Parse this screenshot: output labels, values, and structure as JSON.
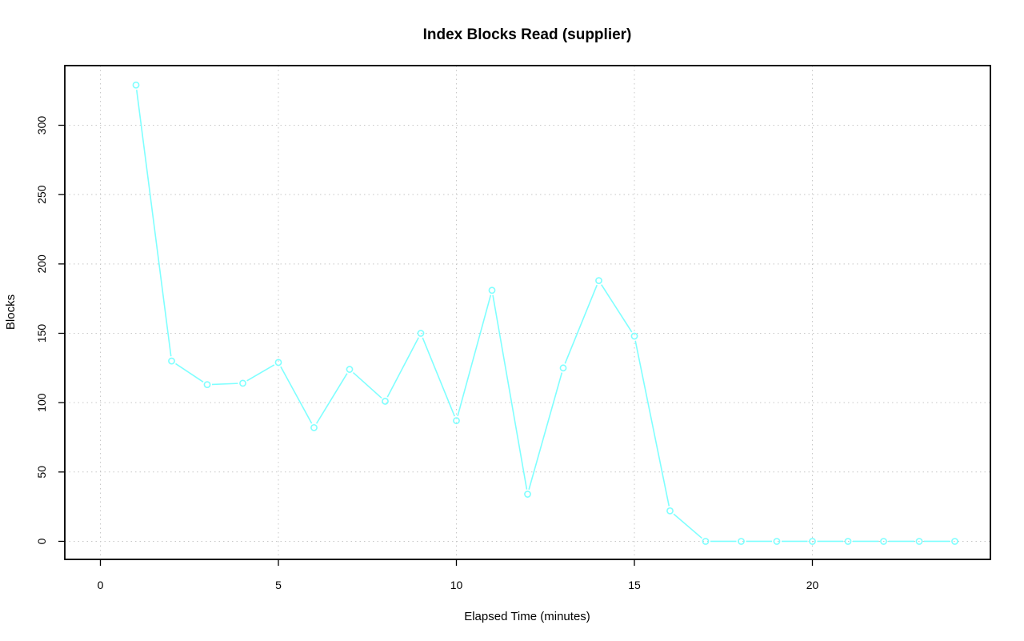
{
  "chart_data": {
    "type": "line",
    "title": "Index Blocks Read (supplier)",
    "xlabel": "Elapsed Time (minutes)",
    "ylabel": "Blocks",
    "xlim": [
      -1,
      25
    ],
    "ylim": [
      -13,
      343
    ],
    "x_ticks": [
      0,
      5,
      10,
      15,
      20
    ],
    "y_ticks": [
      0,
      50,
      100,
      150,
      200,
      250,
      300
    ],
    "grid": true,
    "legend": "none",
    "series": [
      {
        "color": "#7fffff",
        "marker": "open-circle",
        "x": [
          1,
          2,
          3,
          4,
          5,
          6,
          7,
          8,
          9,
          10,
          11,
          12,
          13,
          14,
          15,
          16,
          17,
          18,
          19,
          20,
          21,
          22,
          23,
          24
        ],
        "values": [
          329,
          130,
          113,
          114,
          129,
          82,
          124,
          101,
          150,
          87,
          181,
          34,
          125,
          188,
          148,
          22,
          0,
          0,
          0,
          0,
          0,
          0,
          0,
          0
        ]
      }
    ]
  }
}
